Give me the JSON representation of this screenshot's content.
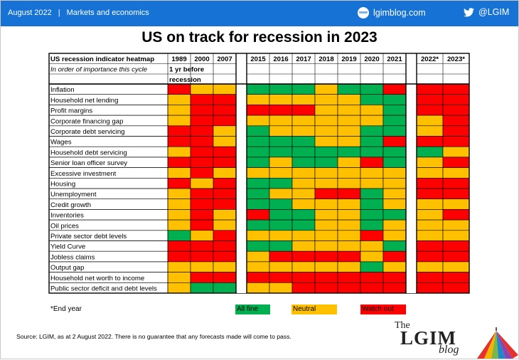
{
  "header": {
    "date": "August 2022",
    "section": "Markets and economics",
    "site": "lgimblog.com",
    "site_icon": "www",
    "handle": "@LGIM"
  },
  "title": "US on track for recession in 2023",
  "chart_data": {
    "type": "heatmap",
    "title": "US on track for recession in 2023",
    "table_title": "US recession indicator heatmap",
    "subtitle": "In order of importance this cycle",
    "group_note": "1 yr before recession",
    "groups": [
      {
        "columns": [
          "1989",
          "2000",
          "2007"
        ]
      },
      {
        "columns": [
          "2015",
          "2016",
          "2017",
          "2018",
          "2019",
          "2020",
          "2021"
        ]
      },
      {
        "columns": [
          "2022*",
          "2023*"
        ]
      }
    ],
    "columns": [
      "1989",
      "2000",
      "2007",
      "2015",
      "2016",
      "2017",
      "2018",
      "2019",
      "2020",
      "2021",
      "2022*",
      "2023*"
    ],
    "rows": [
      {
        "label": "Inflation",
        "values": [
          "R",
          "Y",
          "Y",
          "G",
          "G",
          "G",
          "Y",
          "G",
          "G",
          "R",
          "R",
          "R"
        ]
      },
      {
        "label": "Household net lending",
        "values": [
          "Y",
          "R",
          "R",
          "Y",
          "Y",
          "Y",
          "Y",
          "Y",
          "G",
          "G",
          "R",
          "R"
        ]
      },
      {
        "label": "Profit margins",
        "values": [
          "Y",
          "R",
          "R",
          "R",
          "R",
          "R",
          "Y",
          "Y",
          "Y",
          "G",
          "R",
          "R"
        ]
      },
      {
        "label": "Corporate financing gap",
        "values": [
          "Y",
          "R",
          "R",
          "Y",
          "Y",
          "Y",
          "Y",
          "Y",
          "Y",
          "G",
          "Y",
          "R"
        ]
      },
      {
        "label": "Corporate debt servicing",
        "values": [
          "R",
          "R",
          "Y",
          "G",
          "Y",
          "Y",
          "Y",
          "Y",
          "G",
          "G",
          "Y",
          "R"
        ]
      },
      {
        "label": "Wages",
        "values": [
          "R",
          "R",
          "Y",
          "G",
          "G",
          "G",
          "Y",
          "Y",
          "G",
          "R",
          "R",
          "R"
        ]
      },
      {
        "label": "Household debt servicing",
        "values": [
          "Y",
          "R",
          "R",
          "G",
          "G",
          "G",
          "G",
          "G",
          "G",
          "G",
          "G",
          "Y"
        ]
      },
      {
        "label": "Senior loan officer survey",
        "values": [
          "R",
          "R",
          "R",
          "G",
          "Y",
          "G",
          "G",
          "Y",
          "R",
          "G",
          "Y",
          "R"
        ]
      },
      {
        "label": "Excessive investment",
        "values": [
          "Y",
          "R",
          "Y",
          "Y",
          "Y",
          "Y",
          "Y",
          "Y",
          "Y",
          "Y",
          "Y",
          "Y"
        ]
      },
      {
        "label": "Housing",
        "values": [
          "R",
          "Y",
          "R",
          "G",
          "G",
          "Y",
          "Y",
          "Y",
          "Y",
          "Y",
          "R",
          "R"
        ]
      },
      {
        "label": "Unemployment",
        "values": [
          "Y",
          "R",
          "R",
          "G",
          "Y",
          "Y",
          "R",
          "R",
          "G",
          "Y",
          "R",
          "R"
        ]
      },
      {
        "label": "Credit growth",
        "values": [
          "Y",
          "R",
          "R",
          "G",
          "G",
          "Y",
          "Y",
          "Y",
          "G",
          "Y",
          "Y",
          "Y"
        ]
      },
      {
        "label": "Inventories",
        "values": [
          "Y",
          "R",
          "Y",
          "R",
          "G",
          "G",
          "Y",
          "Y",
          "G",
          "G",
          "Y",
          "R"
        ]
      },
      {
        "label": "Oil prices",
        "values": [
          "Y",
          "R",
          "Y",
          "G",
          "G",
          "G",
          "Y",
          "Y",
          "G",
          "Y",
          "Y",
          "Y"
        ]
      },
      {
        "label": "Private sector debt levels",
        "values": [
          "G",
          "Y",
          "R",
          "Y",
          "Y",
          "Y",
          "Y",
          "Y",
          "R",
          "Y",
          "Y",
          "Y"
        ]
      },
      {
        "label": "Yield Curve",
        "values": [
          "R",
          "R",
          "R",
          "G",
          "G",
          "Y",
          "Y",
          "Y",
          "Y",
          "G",
          "R",
          "R"
        ]
      },
      {
        "label": "Jobless claims",
        "values": [
          "R",
          "R",
          "R",
          "Y",
          "R",
          "R",
          "R",
          "R",
          "Y",
          "R",
          "R",
          "R"
        ]
      },
      {
        "label": "Output gap",
        "values": [
          "Y",
          "Y",
          "Y",
          "Y",
          "Y",
          "Y",
          "Y",
          "Y",
          "G",
          "Y",
          "Y",
          "Y"
        ]
      },
      {
        "label": "Household net worth to income",
        "values": [
          "Y",
          "R",
          "R",
          "R",
          "R",
          "R",
          "R",
          "R",
          "R",
          "R",
          "R",
          "R"
        ]
      },
      {
        "label": "Public sector deficit and debt levels",
        "values": [
          "Y",
          "G",
          "G",
          "Y",
          "Y",
          "R",
          "R",
          "R",
          "R",
          "R",
          "R",
          "R"
        ]
      }
    ],
    "legend": [
      {
        "key": "G",
        "label": "All fine",
        "color": "#00b050"
      },
      {
        "key": "Y",
        "label": "Neutral",
        "color": "#ffc000"
      },
      {
        "key": "R",
        "label": "Watch out",
        "color": "#ff0000"
      }
    ],
    "legend_placement": "bottom",
    "footnote": "*End year"
  },
  "source": "Source: LGIM, as at 2 August 2022. There is no guarantee that any forecasts made will come to pass.",
  "logo": {
    "the": "The",
    "name": "LGIM",
    "blog": "blog"
  },
  "colors": {
    "header_blue": "#1672d4",
    "green": "#00b050",
    "yellow": "#ffc000",
    "red": "#ff0000"
  }
}
